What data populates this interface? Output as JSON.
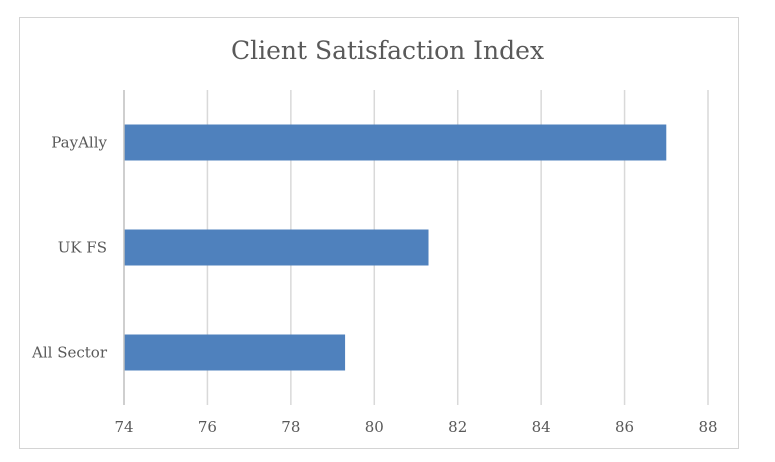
{
  "chart_data": {
    "type": "bar",
    "orientation": "horizontal",
    "title": "Client Satisfaction Index",
    "categories": [
      "PayAlly",
      "UK FS",
      "All Sector"
    ],
    "values": [
      87.0,
      81.3,
      79.3
    ],
    "xlim": [
      74,
      88
    ],
    "xticks": [
      "74",
      "76",
      "78",
      "80",
      "82",
      "84",
      "86",
      "88"
    ],
    "xlabel": "",
    "ylabel": "",
    "grid": true,
    "legend": "none",
    "bar_color": "#4f81bd",
    "grid_color": "#d9d9d9",
    "axis_color": "#bfbfbf"
  }
}
